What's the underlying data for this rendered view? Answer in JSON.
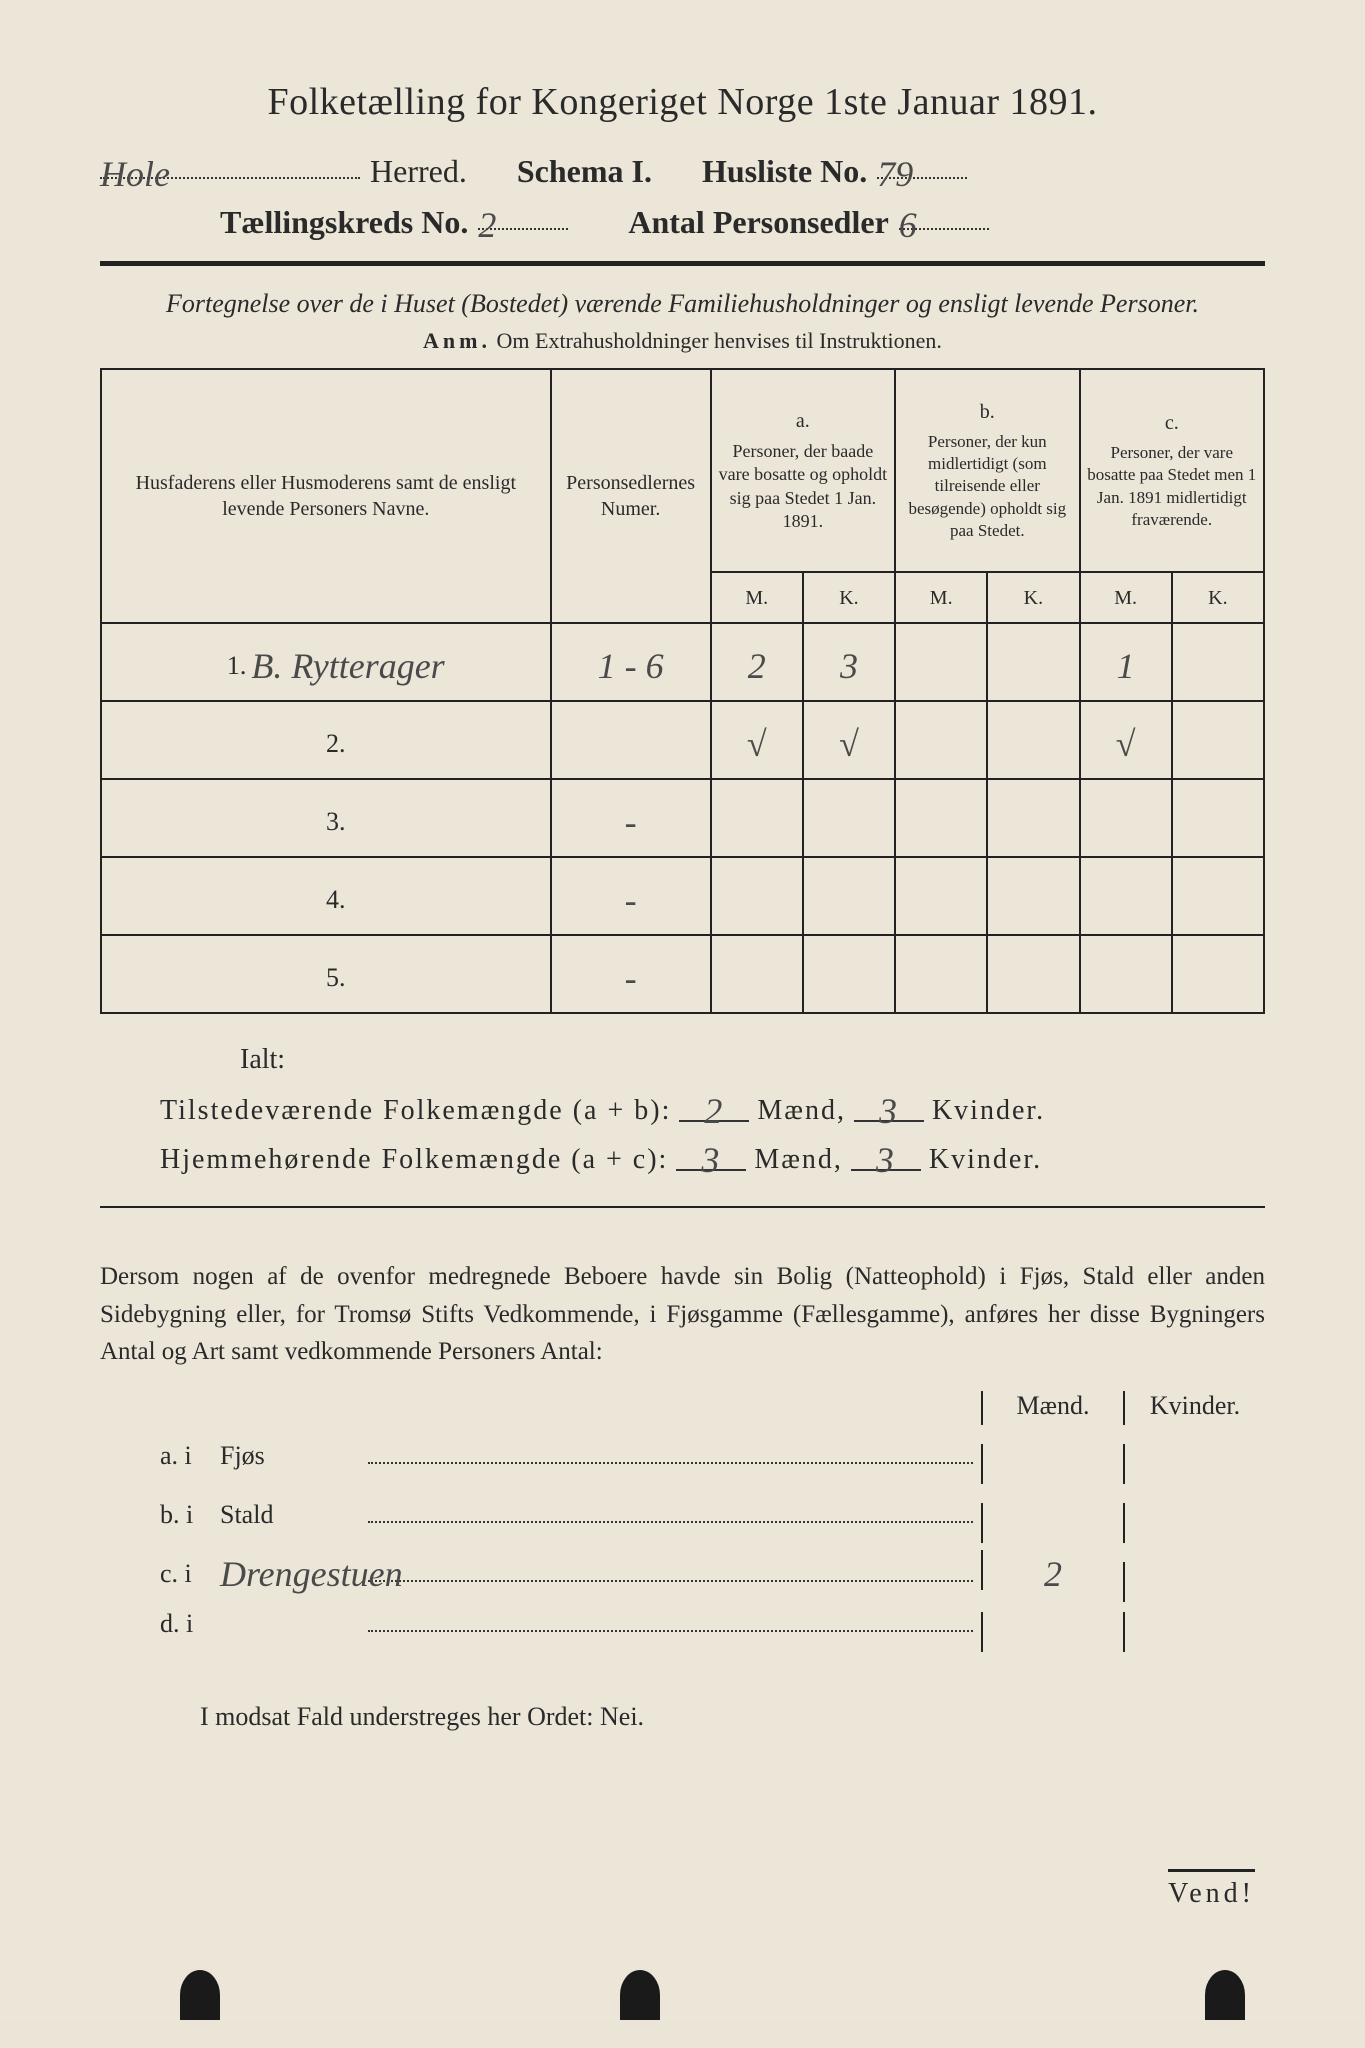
{
  "title": "Folketælling for Kongeriget Norge 1ste Januar 1891.",
  "header": {
    "herred_value": "Hole",
    "herred_label": "Herred.",
    "schema_label": "Schema I.",
    "husliste_label": "Husliste No.",
    "husliste_value": "79",
    "kreds_label": "Tællingskreds No.",
    "kreds_value": "2",
    "antal_label": "Antal Personsedler",
    "antal_value": "6"
  },
  "subtitle": "Fortegnelse over de i Huset (Bostedet) værende Familiehusholdninger og ensligt levende Personer.",
  "anm_prefix": "Anm.",
  "anm_text": "Om Extrahusholdninger henvises til Instruktionen.",
  "columns": {
    "name": "Husfaderens eller Husmoderens samt de ensligt levende Personers Navne.",
    "sedler": "Personsedlernes Numer.",
    "a_label": "a.",
    "a_text": "Personer, der baade vare bosatte og opholdt sig paa Stedet 1 Jan. 1891.",
    "b_label": "b.",
    "b_text": "Personer, der kun midlertidigt (som tilreisende eller besøgende) opholdt sig paa Stedet.",
    "c_label": "c.",
    "c_text": "Personer, der vare bosatte paa Stedet men 1 Jan. 1891 midlertidigt fraværende.",
    "m": "M.",
    "k": "K."
  },
  "rows": [
    {
      "n": "1.",
      "name": "B. Rytterager",
      "sedler": "1 - 6",
      "am": "2",
      "ak": "3",
      "bm": "",
      "bk": "",
      "cm": "1",
      "ck": ""
    },
    {
      "n": "2.",
      "name": "",
      "sedler": "",
      "am": "√",
      "ak": "√",
      "bm": "",
      "bk": "",
      "cm": "√",
      "ck": ""
    },
    {
      "n": "3.",
      "name": "",
      "sedler": "-",
      "am": "",
      "ak": "",
      "bm": "",
      "bk": "",
      "cm": "",
      "ck": ""
    },
    {
      "n": "4.",
      "name": "",
      "sedler": "-",
      "am": "",
      "ak": "",
      "bm": "",
      "bk": "",
      "cm": "",
      "ck": ""
    },
    {
      "n": "5.",
      "name": "",
      "sedler": "-",
      "am": "",
      "ak": "",
      "bm": "",
      "bk": "",
      "cm": "",
      "ck": ""
    }
  ],
  "ialt_label": "Ialt:",
  "sums": {
    "tilstede_label": "Tilstedeværende Folkemængde (a + b):",
    "tilstede_m": "2",
    "tilstede_k": "3",
    "hjemme_label": "Hjemmehørende Folkemængde (a + c):",
    "hjemme_m": "3",
    "hjemme_k": "3",
    "maend": "Mænd,",
    "kvinder": "Kvinder."
  },
  "para": "Dersom nogen af de ovenfor medregnede Beboere havde sin Bolig (Natteophold) i Fjøs, Stald eller anden Sidebygning eller, for Tromsø Stifts Vedkommende, i Fjøsgamme (Fællesgamme), anføres her disse Bygningers Antal og Art samt vedkommende Personers Antal:",
  "bldg_headers": {
    "m": "Mænd.",
    "k": "Kvinder."
  },
  "bldgs": [
    {
      "label": "a. i",
      "name": "Fjøs",
      "hand": "",
      "m": "",
      "k": ""
    },
    {
      "label": "b. i",
      "name": "Stald",
      "hand": "",
      "m": "",
      "k": ""
    },
    {
      "label": "c. i",
      "name": "",
      "hand": "Drengestuen",
      "m": "2",
      "k": ""
    },
    {
      "label": "d. i",
      "name": "",
      "hand": "",
      "m": "",
      "k": ""
    }
  ],
  "nei_line": "I modsat Fald understreges her Ordet: Nei.",
  "vend": "Vend!",
  "colors": {
    "paper": "#ece6d9",
    "ink": "#2a2a2a",
    "hand": "#4a4a4a"
  }
}
